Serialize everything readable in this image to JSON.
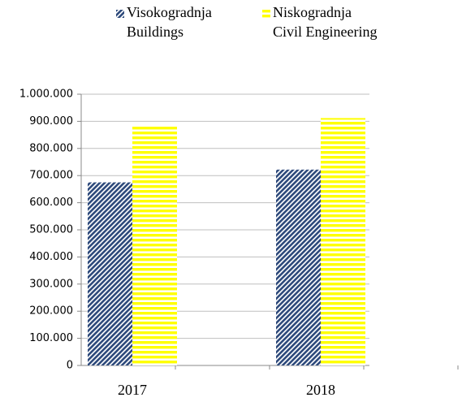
{
  "chart_data": {
    "type": "bar",
    "categories": [
      "2017",
      "2018"
    ],
    "series": [
      {
        "name": "Visokogradnja",
        "name_en": "Buildings",
        "color": "#2f4b7c",
        "pattern": "diagonal",
        "values": [
          675000,
          722000
        ]
      },
      {
        "name": "Niskogradnja",
        "name_en": "Civil Engineering",
        "color": "#ffff00",
        "pattern": "horizontal",
        "values": [
          885000,
          912000
        ]
      }
    ],
    "ylim": [
      0,
      1000000
    ],
    "yticks": [
      0,
      {
        "value": 100000,
        "label": "100.000"
      },
      {
        "value": 200000,
        "label": "200.000"
      },
      {
        "value": 300000,
        "label": "300.000"
      },
      {
        "value": 400000,
        "label": "400.000"
      },
      {
        "value": 500000,
        "label": "500.000"
      },
      {
        "value": 600000,
        "label": "600.000"
      },
      {
        "value": 700000,
        "label": "700.000"
      },
      {
        "value": 800000,
        "label": "800.000"
      },
      {
        "value": 900000,
        "label": "900.000"
      },
      {
        "value": 1000000,
        "label": "1.000.000"
      }
    ],
    "grid": true
  }
}
